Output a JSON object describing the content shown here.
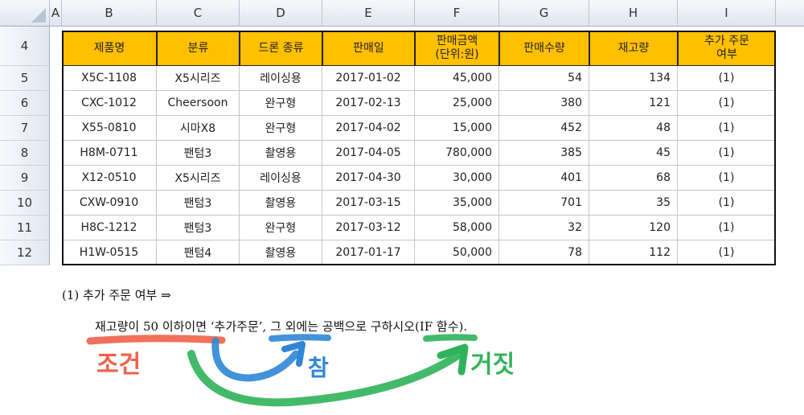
{
  "spreadsheet": {
    "column_letters": [
      "A",
      "B",
      "C",
      "D",
      "E",
      "F",
      "G",
      "H",
      "I"
    ],
    "header_row_number": "4",
    "row_numbers": [
      "5",
      "6",
      "7",
      "8",
      "9",
      "10",
      "11",
      "12"
    ],
    "headers": {
      "product": "제품명",
      "category": "분류",
      "drone_type": "드론 종류",
      "sale_date": "판매일",
      "amount_line1": "판매금액",
      "amount_line2": "(단위:원)",
      "qty": "판매수량",
      "stock": "재고량",
      "extra_line1": "추가 주문",
      "extra_line2": "여부"
    },
    "rows": [
      {
        "product": "X5C-1108",
        "category": "X5시리즈",
        "drone_type": "레이싱용",
        "sale_date": "2017-01-02",
        "amount": "45,000",
        "qty": "54",
        "stock": "134",
        "extra": "(1)"
      },
      {
        "product": "CXC-1012",
        "category": "Cheersoon",
        "drone_type": "완구형",
        "sale_date": "2017-02-13",
        "amount": "25,000",
        "qty": "380",
        "stock": "121",
        "extra": "(1)"
      },
      {
        "product": "X55-0810",
        "category": "시마X8",
        "drone_type": "완구형",
        "sale_date": "2017-04-02",
        "amount": "15,000",
        "qty": "452",
        "stock": "48",
        "extra": "(1)"
      },
      {
        "product": "H8M-0711",
        "category": "팬텀3",
        "drone_type": "촬영용",
        "sale_date": "2017-04-05",
        "amount": "780,000",
        "qty": "385",
        "stock": "45",
        "extra": "(1)"
      },
      {
        "product": "X12-0510",
        "category": "X5시리즈",
        "drone_type": "레이싱용",
        "sale_date": "2017-04-30",
        "amount": "30,000",
        "qty": "401",
        "stock": "68",
        "extra": "(1)"
      },
      {
        "product": "CXW-0910",
        "category": "팬텀3",
        "drone_type": "촬영용",
        "sale_date": "2017-03-15",
        "amount": "35,000",
        "qty": "701",
        "stock": "35",
        "extra": "(1)"
      },
      {
        "product": "H8C-1212",
        "category": "팬텀3",
        "drone_type": "완구형",
        "sale_date": "2017-03-12",
        "amount": "58,000",
        "qty": "32",
        "stock": "120",
        "extra": "(1)"
      },
      {
        "product": "H1W-0515",
        "category": "팬텀4",
        "drone_type": "촬영용",
        "sale_date": "2017-01-17",
        "amount": "50,000",
        "qty": "78",
        "stock": "112",
        "extra": "(1)"
      }
    ]
  },
  "question": {
    "title": "(1) 추가 주문 여부 ⇒",
    "body": "재고량이 50 이하이면 ‘추가주문’, 그 외에는 공백으로 구하시오(IF 함수)."
  },
  "annotations": {
    "condition": "조건",
    "true_label": "참",
    "false_label": "거짓",
    "colors": {
      "condition": "#f0614a",
      "true": "#2f86d6",
      "false": "#2fb35a"
    }
  }
}
